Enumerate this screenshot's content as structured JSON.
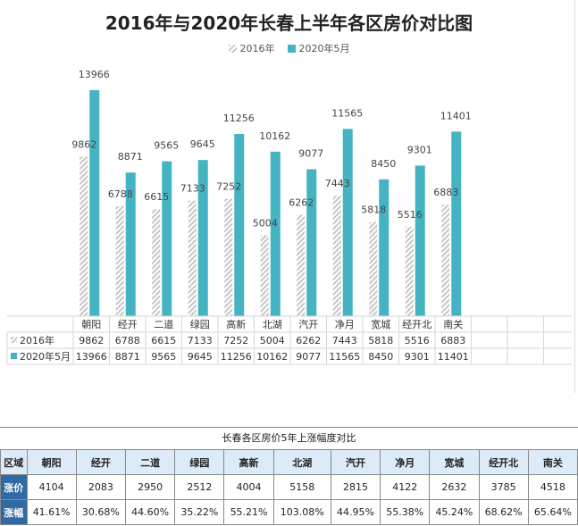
{
  "chart_data": {
    "type": "bar",
    "title": "2016年与2020年长春上半年各区房价对比图",
    "categories": [
      "朝阳",
      "经开",
      "二道",
      "绿园",
      "高新",
      "北湖",
      "汽开",
      "净月",
      "宽城",
      "经开北",
      "南关"
    ],
    "series": [
      {
        "name": "2016年",
        "values": [
          9862,
          6788,
          6615,
          7133,
          7252,
          5004,
          6262,
          7443,
          5818,
          5516,
          6883
        ],
        "color": "#c8c8c8",
        "pattern": "diagonal-hatch"
      },
      {
        "name": "2020年5月",
        "values": [
          13966,
          8871,
          9565,
          9645,
          11256,
          10162,
          9077,
          11565,
          8450,
          9301,
          11401
        ],
        "color": "#44b4c2"
      }
    ],
    "ylim": [
      0,
      16000
    ],
    "grid": false,
    "legend": "top-center",
    "data_table": true
  },
  "growth_table": {
    "title": "长春各区房价5年上涨幅度对比",
    "header_label": "区域",
    "districts": [
      "朝阳",
      "经开",
      "二道",
      "绿园",
      "高新",
      "北湖",
      "汽开",
      "净月",
      "宽城",
      "经开北",
      "南关"
    ],
    "rows": [
      {
        "label": "涨价",
        "values": [
          "4104",
          "2083",
          "2950",
          "2512",
          "4004",
          "5158",
          "2815",
          "4122",
          "2632",
          "3785",
          "4518"
        ]
      },
      {
        "label": "涨幅",
        "values": [
          "41.61%",
          "30.68%",
          "44.60%",
          "35.22%",
          "55.21%",
          "103.08%",
          "44.95%",
          "55.38%",
          "45.24%",
          "68.62%",
          "65.64%"
        ]
      }
    ]
  }
}
